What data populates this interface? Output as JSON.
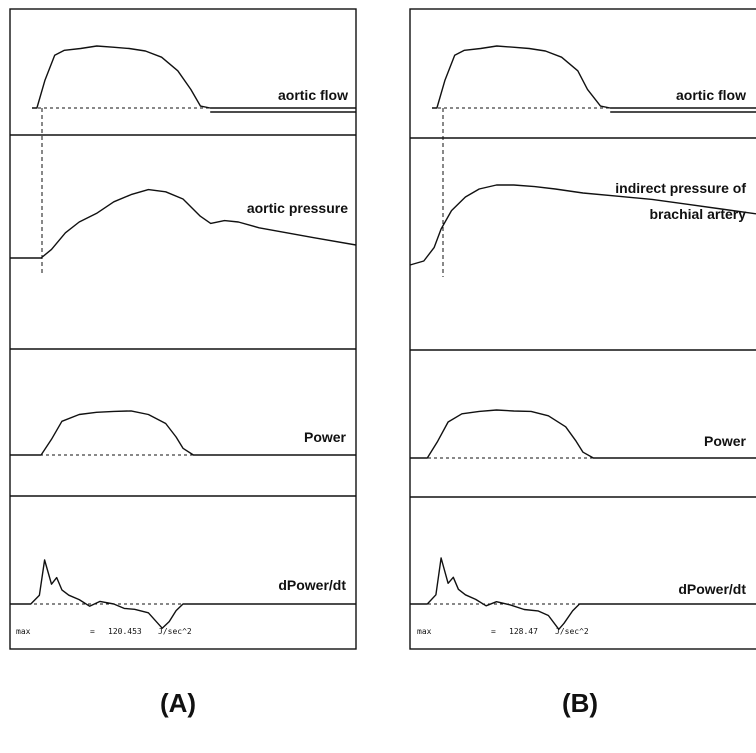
{
  "chart_data": [
    {
      "type": "line",
      "panel_caption": "(A)",
      "series": [
        {
          "name": "aortic flow",
          "x": [
            0,
            0.015,
            0.04,
            0.07,
            0.1,
            0.15,
            0.2,
            0.25,
            0.3,
            0.35,
            0.4,
            0.45,
            0.49,
            0.52,
            0.55,
            1.0
          ],
          "y": [
            0,
            0,
            0.45,
            0.85,
            0.93,
            0.96,
            1.0,
            0.98,
            0.96,
            0.92,
            0.82,
            0.6,
            0.3,
            0.03,
            0,
            0
          ]
        },
        {
          "name": "aortic pressure",
          "x": [
            0,
            0.09,
            0.12,
            0.16,
            0.2,
            0.25,
            0.3,
            0.35,
            0.4,
            0.45,
            0.5,
            0.55,
            0.58,
            0.62,
            0.66,
            0.72,
            0.8,
            0.88,
            1.0
          ],
          "y": [
            0,
            0,
            0.12,
            0.35,
            0.5,
            0.62,
            0.78,
            0.88,
            0.95,
            0.92,
            0.82,
            0.58,
            0.48,
            0.52,
            0.5,
            0.42,
            0.35,
            0.28,
            0.18
          ]
        },
        {
          "name": "Power",
          "x": [
            0,
            0.09,
            0.12,
            0.15,
            0.2,
            0.25,
            0.3,
            0.35,
            0.4,
            0.45,
            0.48,
            0.5,
            0.53,
            1.0
          ],
          "y": [
            0,
            0,
            0.35,
            0.75,
            0.9,
            0.95,
            0.97,
            0.98,
            0.9,
            0.7,
            0.4,
            0.15,
            0,
            0
          ]
        },
        {
          "name": "dPower/dt",
          "x": [
            0,
            0.06,
            0.085,
            0.1,
            0.12,
            0.135,
            0.15,
            0.17,
            0.2,
            0.23,
            0.26,
            0.3,
            0.33,
            0.36,
            0.4,
            0.44,
            0.46,
            0.48,
            0.5,
            1.0
          ],
          "y": [
            0,
            0,
            0.2,
            1.0,
            0.45,
            0.6,
            0.32,
            0.2,
            0.1,
            -0.05,
            0.06,
            0.0,
            -0.1,
            -0.12,
            -0.2,
            -0.55,
            -0.4,
            -0.15,
            0,
            0
          ]
        }
      ],
      "footer": {
        "label": "max",
        "eq": "=",
        "value": "120.453",
        "unit": "J/sec^2"
      }
    },
    {
      "type": "line",
      "panel_caption": "(B)",
      "series": [
        {
          "name": "aortic flow",
          "x": [
            0,
            0.015,
            0.04,
            0.07,
            0.1,
            0.15,
            0.2,
            0.25,
            0.3,
            0.35,
            0.4,
            0.45,
            0.48,
            0.52,
            0.55,
            1.0
          ],
          "y": [
            0,
            0,
            0.45,
            0.85,
            0.93,
            0.96,
            1.0,
            0.98,
            0.96,
            0.92,
            0.82,
            0.6,
            0.3,
            0.03,
            0,
            0
          ]
        },
        {
          "name": "indirect pressure of brachial artery",
          "x": [
            0,
            0.04,
            0.07,
            0.09,
            0.12,
            0.16,
            0.2,
            0.25,
            0.3,
            0.36,
            0.42,
            0.5,
            0.6,
            0.7,
            0.8,
            0.9,
            1.0
          ],
          "y": [
            0,
            0.05,
            0.22,
            0.45,
            0.68,
            0.85,
            0.95,
            1.0,
            1.0,
            0.98,
            0.95,
            0.9,
            0.86,
            0.82,
            0.76,
            0.7,
            0.64
          ]
        },
        {
          "name": "Power",
          "x": [
            0,
            0.05,
            0.08,
            0.11,
            0.15,
            0.2,
            0.25,
            0.3,
            0.35,
            0.4,
            0.45,
            0.48,
            0.5,
            0.53,
            1.0
          ],
          "y": [
            0,
            0,
            0.35,
            0.75,
            0.92,
            0.97,
            1.0,
            0.98,
            0.97,
            0.88,
            0.65,
            0.35,
            0.12,
            0,
            0
          ]
        },
        {
          "name": "dPower/dt",
          "x": [
            0,
            0.05,
            0.075,
            0.09,
            0.11,
            0.125,
            0.14,
            0.16,
            0.19,
            0.22,
            0.25,
            0.29,
            0.33,
            0.37,
            0.4,
            0.43,
            0.445,
            0.47,
            0.49,
            1.0
          ],
          "y": [
            0,
            0,
            0.2,
            1.0,
            0.45,
            0.58,
            0.32,
            0.2,
            0.1,
            -0.04,
            0.05,
            -0.02,
            -0.12,
            -0.15,
            -0.25,
            -0.55,
            -0.42,
            -0.15,
            0,
            0
          ]
        }
      ],
      "footer": {
        "label": "max",
        "eq": "=",
        "value": "128.47",
        "unit": "J/sec^2"
      }
    }
  ]
}
